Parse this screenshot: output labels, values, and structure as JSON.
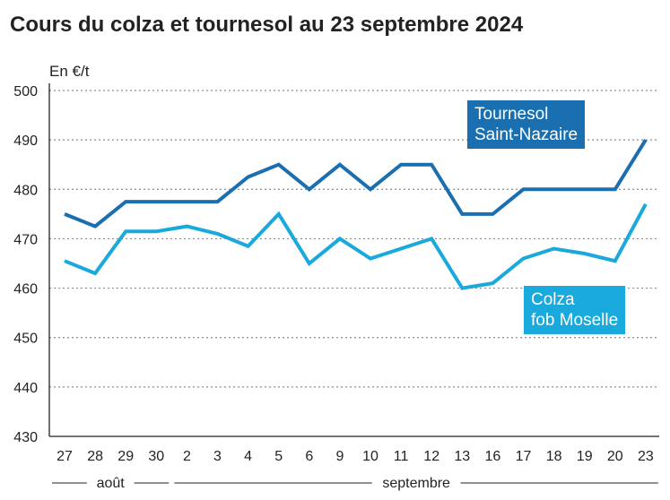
{
  "title": "Cours du colza et tournesol au 23 septembre 2024",
  "chart_data": {
    "type": "line",
    "title": "Cours du colza et tournesol au 23 septembre 2024",
    "ylabel": "En €/t",
    "xlabel": "",
    "ylim": [
      430,
      500
    ],
    "yticks": [
      430,
      440,
      450,
      460,
      470,
      480,
      490,
      500
    ],
    "grid": true,
    "categories": [
      "27",
      "28",
      "29",
      "30",
      "2",
      "3",
      "4",
      "5",
      "6",
      "9",
      "10",
      "11",
      "12",
      "13",
      "16",
      "17",
      "18",
      "19",
      "20",
      "23"
    ],
    "month_groups": [
      {
        "label": "août",
        "from": 0,
        "to": 3
      },
      {
        "label": "septembre",
        "from": 4,
        "to": 19
      }
    ],
    "series": [
      {
        "name": "Tournesol Saint-Nazaire",
        "name_lines": [
          "Tournesol",
          "Saint-Nazaire"
        ],
        "color": "#1a6fb0",
        "values": [
          475,
          472.5,
          477.5,
          477.5,
          477.5,
          477.5,
          482.5,
          485,
          480,
          485,
          480,
          485,
          485,
          475,
          475,
          480,
          480,
          480,
          480,
          490
        ]
      },
      {
        "name": "Colza fob Moselle",
        "name_lines": [
          "Colza",
          "fob Moselle"
        ],
        "color": "#1aa9dc",
        "values": [
          465.5,
          463,
          471.5,
          471.5,
          472.5,
          471,
          468.5,
          475,
          465,
          470,
          466,
          468,
          470,
          460,
          461,
          466,
          468,
          467,
          465.5,
          477
        ]
      }
    ]
  }
}
